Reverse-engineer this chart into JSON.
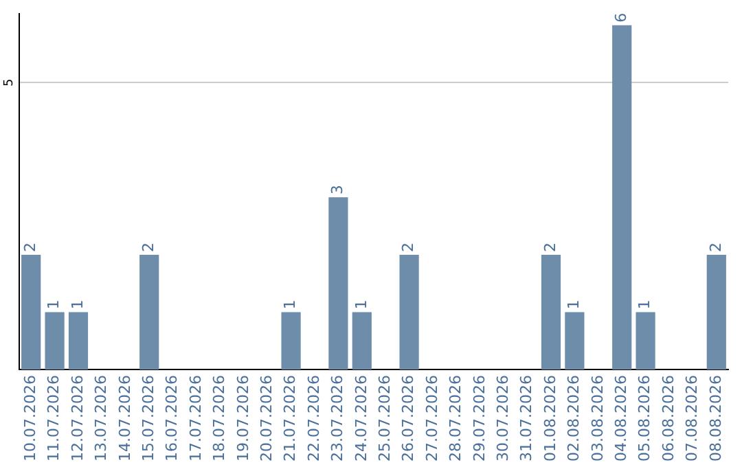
{
  "chart_data": {
    "type": "bar",
    "categories": [
      "10.07.2026",
      "11.07.2026",
      "12.07.2026",
      "13.07.2026",
      "14.07.2026",
      "15.07.2026",
      "16.07.2026",
      "17.07.2026",
      "18.07.2026",
      "19.07.2026",
      "20.07.2026",
      "21.07.2026",
      "22.07.2026",
      "23.07.2026",
      "24.07.2026",
      "25.07.2026",
      "26.07.2026",
      "27.07.2026",
      "28.07.2026",
      "29.07.2026",
      "30.07.2026",
      "31.07.2026",
      "01.08.2026",
      "02.08.2026",
      "03.08.2026",
      "04.08.2026",
      "05.08.2026",
      "06.08.2026",
      "07.08.2026",
      "08.08.2026"
    ],
    "values": [
      2,
      1,
      1,
      0,
      0,
      2,
      0,
      0,
      0,
      0,
      0,
      1,
      0,
      3,
      1,
      0,
      2,
      0,
      0,
      0,
      0,
      0,
      2,
      1,
      0,
      6,
      1,
      0,
      0,
      2
    ],
    "value_labels": [
      "2",
      "1",
      "1",
      null,
      null,
      "2",
      null,
      null,
      null,
      null,
      null,
      "1",
      null,
      "3",
      "1",
      null,
      "2",
      null,
      null,
      null,
      null,
      null,
      "2",
      "1",
      null,
      "6",
      "1",
      null,
      null,
      "2"
    ],
    "color": "#6d8dab",
    "ylim": [
      0,
      6.2
    ],
    "yticks": [
      5
    ],
    "grid": "y",
    "legend": false
  }
}
